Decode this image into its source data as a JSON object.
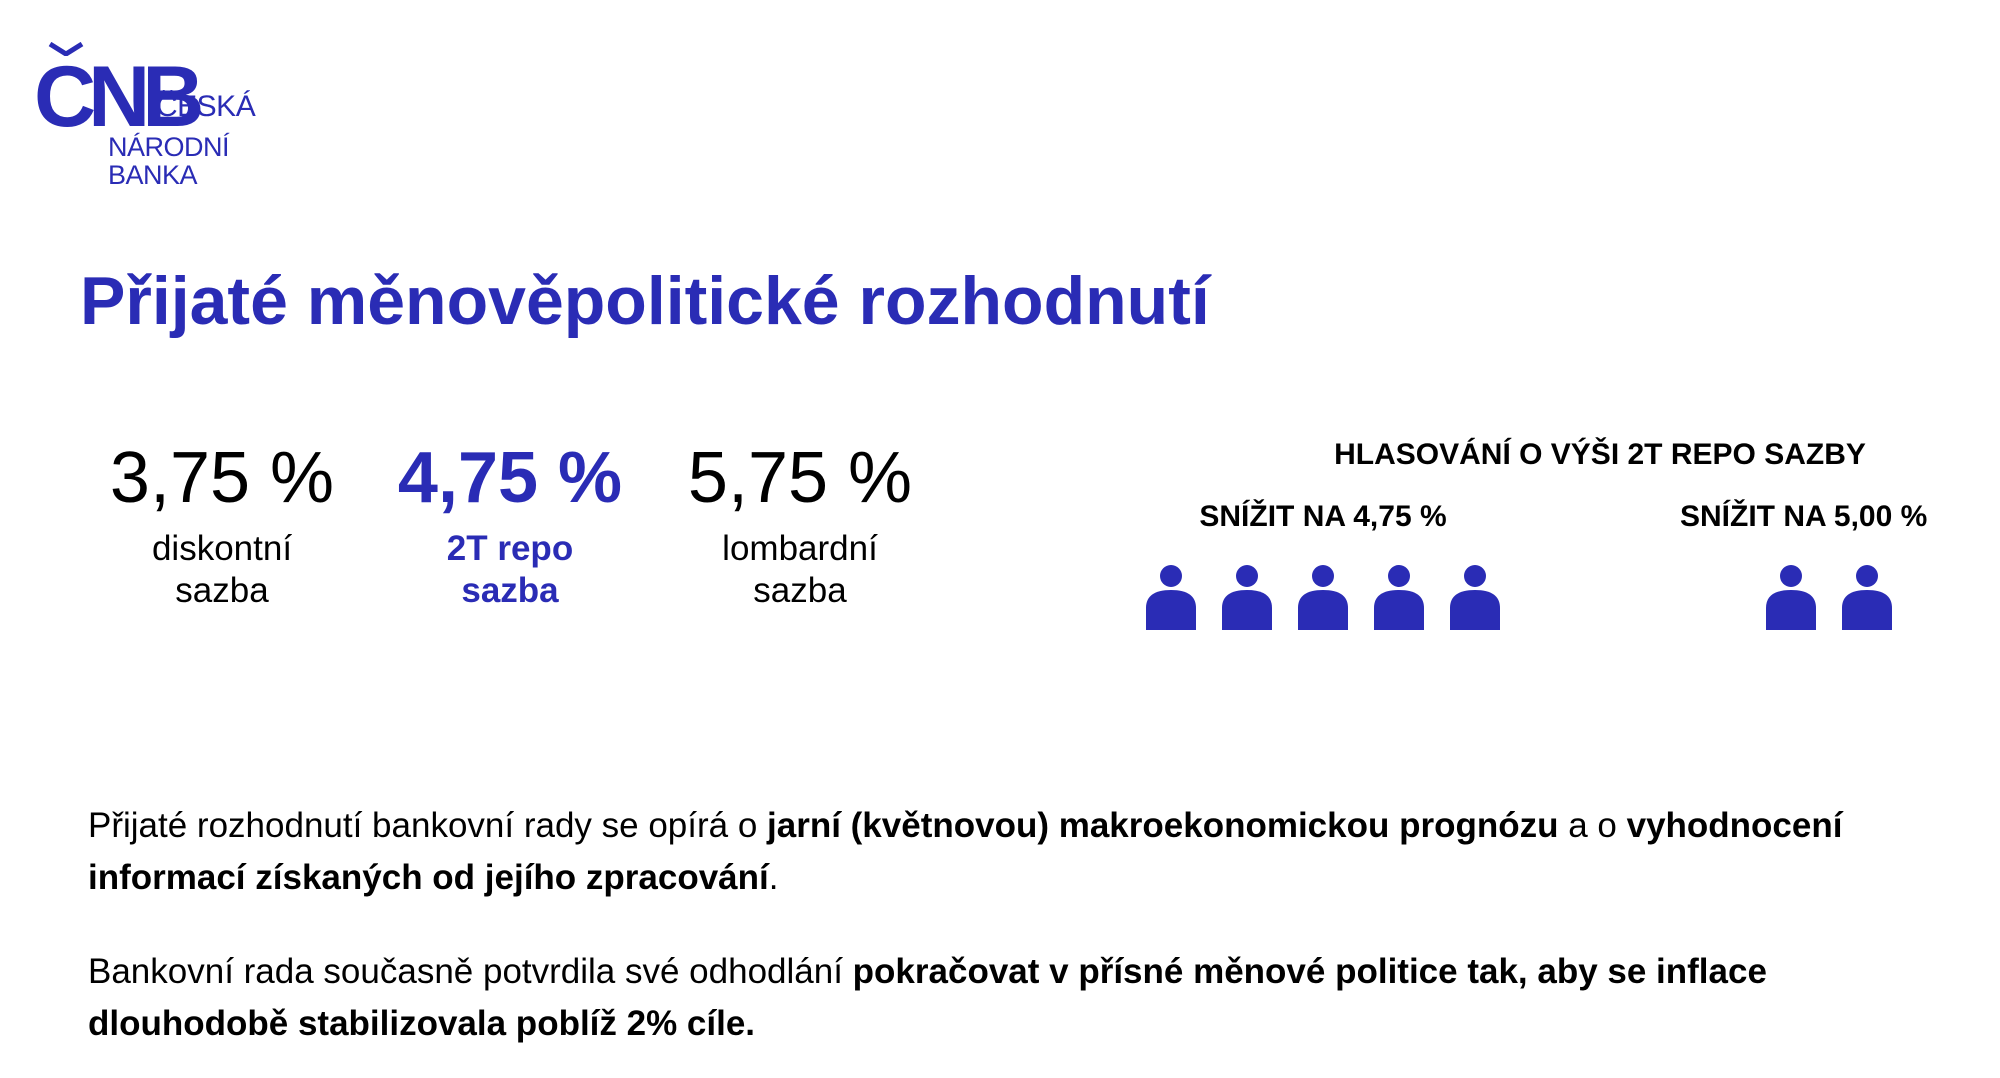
{
  "logo": {
    "mark": "CNB",
    "line1": "ČESKÁ",
    "line2": "NÁRODNÍ",
    "line3": "BANKA"
  },
  "title": "Přijaté měnověpolitické rozhodnutí",
  "rates": [
    {
      "value": "3,75 %",
      "label_line1": "diskontní",
      "label_line2": "sazba"
    },
    {
      "value": "4,75 %",
      "label_line1": "2T repo",
      "label_line2": "sazba"
    },
    {
      "value": "5,75 %",
      "label_line1": "lombardní",
      "label_line2": "sazba"
    }
  ],
  "voting": {
    "title": "HLASOVÁNÍ O VÝŠI 2T REPO SAZBY",
    "groups": [
      {
        "option": "SNÍŽIT NA 4,75 %",
        "votes": 5
      },
      {
        "option": "SNÍŽIT NA 5,00 %",
        "votes": 2
      }
    ]
  },
  "paragraph1": {
    "t1": "Přijaté rozhodnutí bankovní rady se opírá o ",
    "b1": "jarní (květnovou) makroekonomickou prognózu",
    "t2": " a o ",
    "b2": "vyhodnocení informací získaných od jejího zpracování",
    "t3": "."
  },
  "paragraph2": {
    "t1": "Bankovní rada současně potvrdila své odhodlání ",
    "b1": "pokračovat v přísné měnové politice tak, aby se inflace dlouhodobě stabilizovala poblíž 2% cíle."
  },
  "colors": {
    "accent": "#2a2cb5",
    "text": "#000000",
    "background": "#ffffff"
  },
  "icons": {
    "voter": "person-icon"
  }
}
